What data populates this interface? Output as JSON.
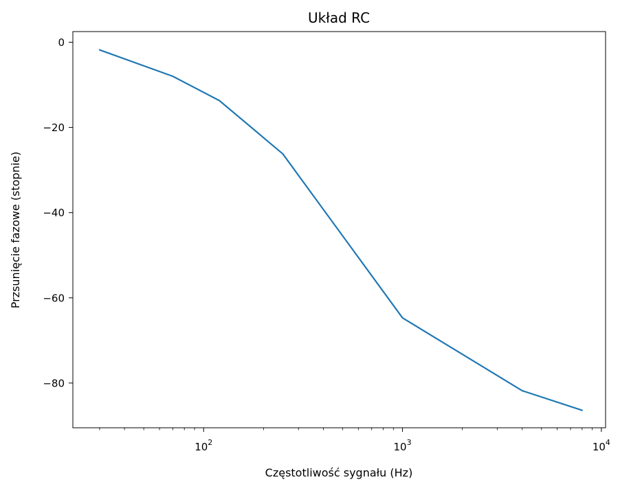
{
  "chart_data": {
    "type": "line",
    "title": "Układ RC",
    "xlabel": "Częstotliwość sygnału (Hz)",
    "ylabel": "Przsunięcie fazowe (stopnie)",
    "xscale": "log",
    "xlim": [
      22,
      10500
    ],
    "ylim": [
      -90.5,
      2.5
    ],
    "xticks": [
      {
        "value": 100,
        "base": "10",
        "exp": "2"
      },
      {
        "value": 1000,
        "base": "10",
        "exp": "3"
      },
      {
        "value": 10000,
        "base": "10",
        "exp": "4"
      }
    ],
    "yticks": [
      {
        "value": 0,
        "label": "0"
      },
      {
        "value": -20,
        "label": "−20"
      },
      {
        "value": -40,
        "label": "−40"
      },
      {
        "value": -60,
        "label": "−60"
      },
      {
        "value": -80,
        "label": "−80"
      }
    ],
    "grid": false,
    "series": [
      {
        "color": "#1f77b4",
        "x": [
          30,
          70,
          120,
          250,
          1000,
          4000,
          8000
        ],
        "y": [
          -1.8,
          -8,
          -13.7,
          -26.2,
          -64.7,
          -81.8,
          -86.4
        ]
      }
    ]
  }
}
